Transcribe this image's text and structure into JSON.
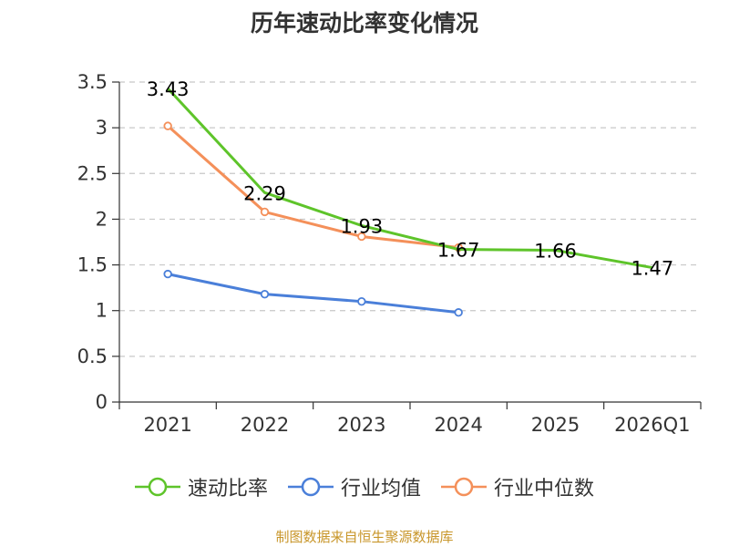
{
  "chart_data": {
    "type": "line",
    "title": "历年速动比率变化情况",
    "categories": [
      "2021",
      "2022",
      "2023",
      "2024",
      "2025",
      "2026Q1"
    ],
    "ylim": [
      0,
      3.5
    ],
    "yticks": [
      "0",
      "0.5",
      "1",
      "1.5",
      "2",
      "2.5",
      "3",
      "3.5"
    ],
    "grid": "horizontal-dashed",
    "legend_position": "bottom",
    "series": [
      {
        "name": "速动比率",
        "color": "#5ec42a",
        "values": [
          3.43,
          2.29,
          1.93,
          1.67,
          1.66,
          1.47
        ],
        "labels": [
          "3.43",
          "2.29",
          "1.93",
          "1.67",
          "1.66",
          "1.47"
        ]
      },
      {
        "name": "行业均值",
        "color": "#4a7fd9",
        "values": [
          1.4,
          1.18,
          1.1,
          0.98,
          null,
          null
        ]
      },
      {
        "name": "行业中位数",
        "color": "#f4905a",
        "values": [
          3.02,
          2.08,
          1.81,
          1.69,
          null,
          null
        ]
      }
    ]
  },
  "source": {
    "text": "制图数据来自恒生聚源数据库",
    "color": "#c8962a"
  }
}
